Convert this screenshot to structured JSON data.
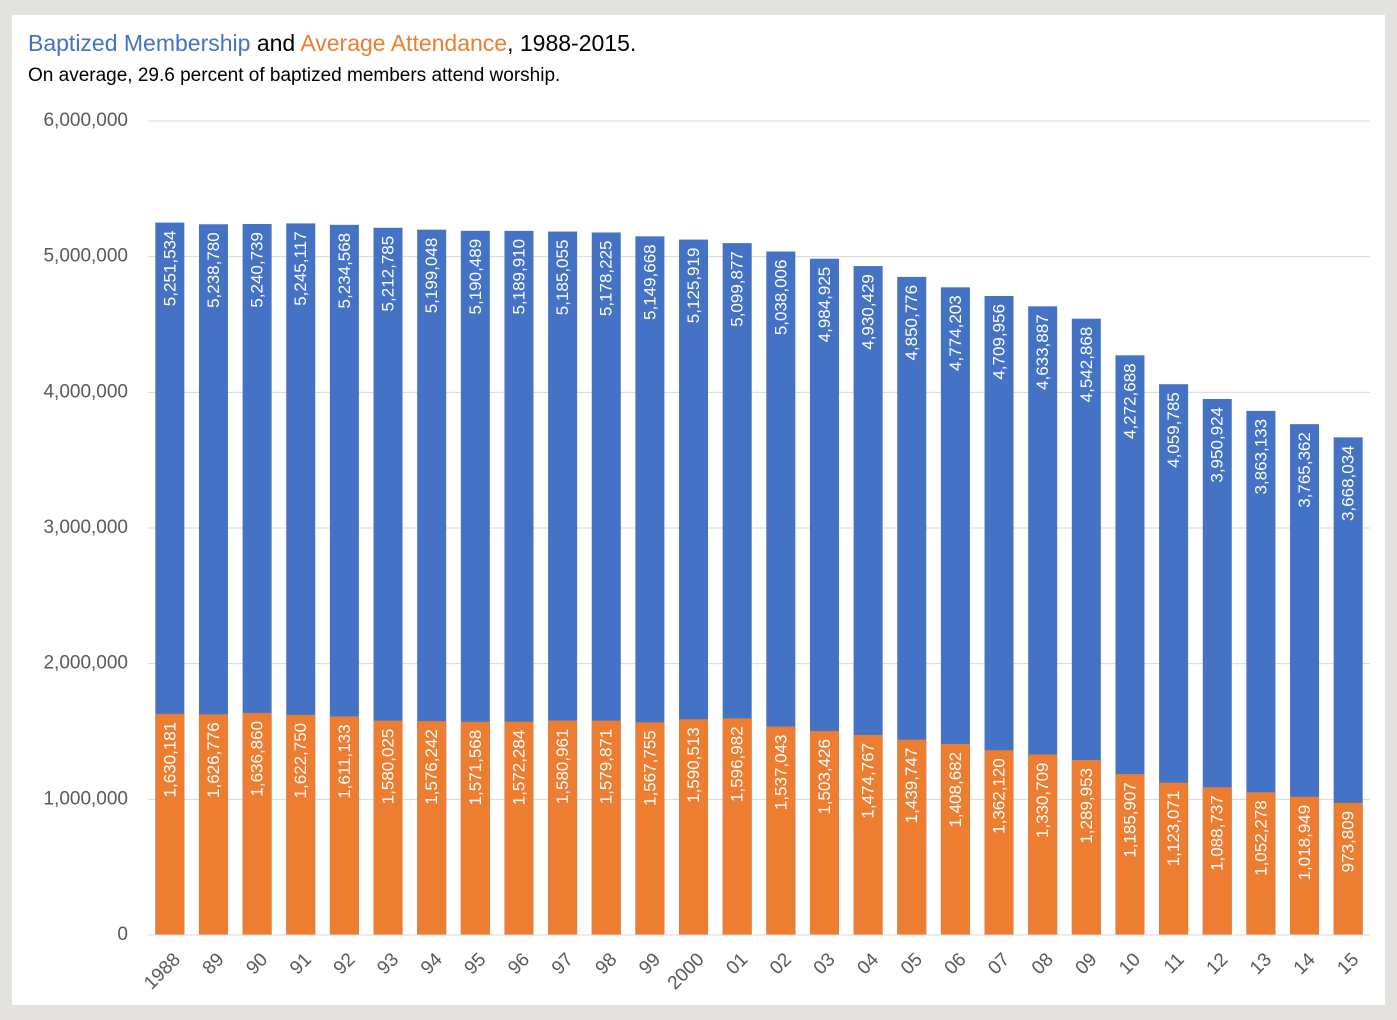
{
  "chart_data": {
    "type": "bar",
    "title_connector": "and",
    "title_suffix": ", 1988-2015.",
    "subtitle": "On average, 29.6 percent of baptized members attend worship.",
    "categories": [
      "1988",
      "89",
      "90",
      "91",
      "92",
      "93",
      "94",
      "95",
      "96",
      "97",
      "98",
      "99",
      "2000",
      "01",
      "02",
      "03",
      "04",
      "05",
      "06",
      "07",
      "08",
      "09",
      "10",
      "11",
      "12",
      "13",
      "14",
      "15"
    ],
    "series": [
      {
        "name": "Baptized Membership",
        "color": "#4472c4",
        "values": [
          5251534,
          5238780,
          5240739,
          5245117,
          5234568,
          5212785,
          5199048,
          5190489,
          5189910,
          5185055,
          5178225,
          5149668,
          5125919,
          5099877,
          5038006,
          4984925,
          4930429,
          4850776,
          4774203,
          4709956,
          4633887,
          4542868,
          4272688,
          4059785,
          3950924,
          3863133,
          3765362,
          3668034
        ],
        "value_labels": [
          "5,251,534",
          "5,238,780",
          "5,240,739",
          "5,245,117",
          "5,234,568",
          "5,212,785",
          "5,199,048",
          "5,190,489",
          "5,189,910",
          "5,185,055",
          "5,178,225",
          "5,149,668",
          "5,125,919",
          "5,099,877",
          "5,038,006",
          "4,984,925",
          "4,930,429",
          "4,850,776",
          "4,774,203",
          "4,709,956",
          "4,633,887",
          "4,542,868",
          "4,272,688",
          "4,059,785",
          "3,950,924",
          "3,863,133",
          "3,765,362",
          "3,668,034"
        ]
      },
      {
        "name": "Average Attendance",
        "color": "#ed7d31",
        "values": [
          1630181,
          1626776,
          1636860,
          1622750,
          1611133,
          1580025,
          1576242,
          1571568,
          1572284,
          1580961,
          1579871,
          1567755,
          1590513,
          1596982,
          1537043,
          1503426,
          1474767,
          1439747,
          1408682,
          1362120,
          1330709,
          1289953,
          1185907,
          1123071,
          1088737,
          1052278,
          1018949,
          973809
        ],
        "value_labels": [
          "1,630,181",
          "1,626,776",
          "1,636,860",
          "1,622,750",
          "1,611,133",
          "1,580,025",
          "1,576,242",
          "1,571,568",
          "1,572,284",
          "1,580,961",
          "1,579,871",
          "1,567,755",
          "1,590,513",
          "1,596,982",
          "1,537,043",
          "1,503,426",
          "1,474,767",
          "1,439,747",
          "1,408,682",
          "1,362,120",
          "1,330,709",
          "1,289,953",
          "1,185,907",
          "1,123,071",
          "1,088,737",
          "1,052,278",
          "1,018,949",
          "973,809"
        ]
      }
    ],
    "ylim": [
      0,
      6000000
    ],
    "yticks": [
      0,
      {
        "value": 1000000,
        "label": "1,000,000"
      },
      {
        "value": 2000000,
        "label": "2,000,000"
      },
      {
        "value": 3000000,
        "label": "3,000,000"
      },
      {
        "value": 4000000,
        "label": "4,000,000"
      },
      {
        "value": 5000000,
        "label": "5,000,000"
      },
      {
        "value": 6000000,
        "label": "6,000,000"
      }
    ],
    "grid": true
  }
}
